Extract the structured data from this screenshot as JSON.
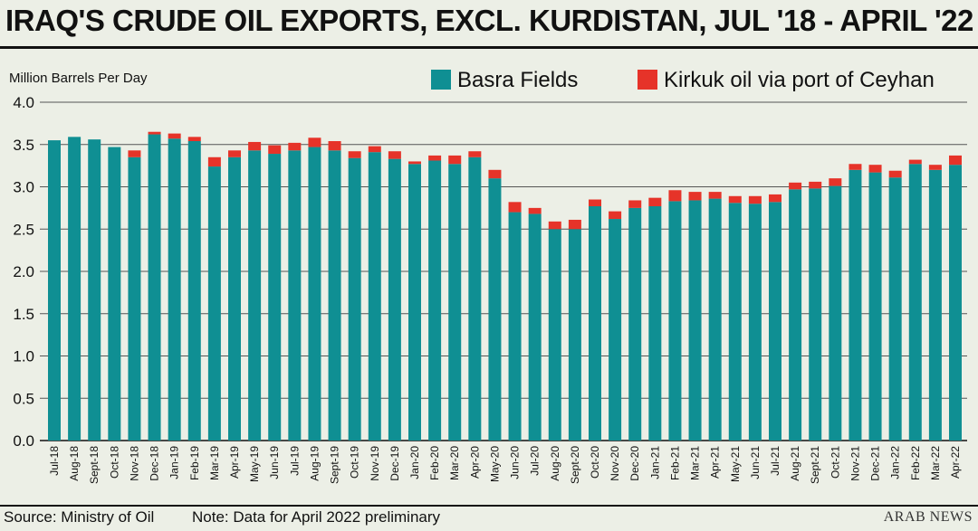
{
  "title": "IRAQ'S CRUDE OIL EXPORTS, EXCL. KURDISTAN, JUL '18 - APRIL '22",
  "footer": {
    "source": "Source: Ministry of Oil",
    "note": "Note: Data for April 2022 preliminary",
    "logo": "ARAB NEWS"
  },
  "colors": {
    "basra": "#0f8f93",
    "kirkuk": "#e63329",
    "grid": "#555555",
    "background": "#ecefe6"
  },
  "chart_data": {
    "type": "bar",
    "stacked": true,
    "ylabel": "Million Barrels Per Day",
    "xlabel": "",
    "ylim": [
      0,
      4.0
    ],
    "yticks": [
      "0.0",
      "0.5",
      "1.0",
      "1.5",
      "2.0",
      "2.5",
      "3.0",
      "3.5",
      "4.0"
    ],
    "legend_position": "top-right",
    "grid": true,
    "categories": [
      "Jul-18",
      "Aug-18",
      "Sept-18",
      "Oct-18",
      "Nov-18",
      "Dec-18",
      "Jan-19",
      "Feb-19",
      "Mar-19",
      "Apr-19",
      "May-19",
      "Jun-19",
      "Jul-19",
      "Aug-19",
      "Sept-19",
      "Oct-19",
      "Nov-19",
      "Dec-19",
      "Jan-20",
      "Feb-20",
      "Mar-20",
      "Apr-20",
      "May-20",
      "Jun-20",
      "Jul-20",
      "Aug-20",
      "Sept-20",
      "Oct-20",
      "Nov-20",
      "Dec-20",
      "Jan-21",
      "Feb-21",
      "Mar-21",
      "Apr-21",
      "May-21",
      "Jun-21",
      "Jul-21",
      "Aug-21",
      "Sept-21",
      "Oct-21",
      "Nov-21",
      "Dec-21",
      "Jan-22",
      "Feb-22",
      "Mar-22",
      "Apr-22"
    ],
    "series": [
      {
        "name": "Basra Fields",
        "values": [
          3.55,
          3.59,
          3.56,
          3.47,
          3.35,
          3.62,
          3.57,
          3.54,
          3.24,
          3.35,
          3.43,
          3.39,
          3.43,
          3.47,
          3.43,
          3.34,
          3.41,
          3.33,
          3.27,
          3.31,
          3.27,
          3.35,
          3.1,
          2.7,
          2.68,
          2.5,
          2.5,
          2.77,
          2.62,
          2.75,
          2.77,
          2.83,
          2.84,
          2.86,
          2.81,
          2.8,
          2.82,
          2.97,
          2.98,
          3.01,
          3.2,
          3.17,
          3.11,
          3.27,
          3.2,
          3.26
        ]
      },
      {
        "name": "Kirkuk oil via port of Ceyhan",
        "values": [
          0,
          0,
          0,
          0,
          0.08,
          0.03,
          0.06,
          0.05,
          0.11,
          0.08,
          0.1,
          0.1,
          0.09,
          0.11,
          0.11,
          0.08,
          0.07,
          0.09,
          0.03,
          0.06,
          0.1,
          0.07,
          0.1,
          0.12,
          0.07,
          0.09,
          0.11,
          0.08,
          0.09,
          0.09,
          0.1,
          0.13,
          0.1,
          0.08,
          0.08,
          0.09,
          0.09,
          0.08,
          0.08,
          0.09,
          0.07,
          0.09,
          0.08,
          0.05,
          0.06,
          0.11
        ]
      }
    ]
  }
}
